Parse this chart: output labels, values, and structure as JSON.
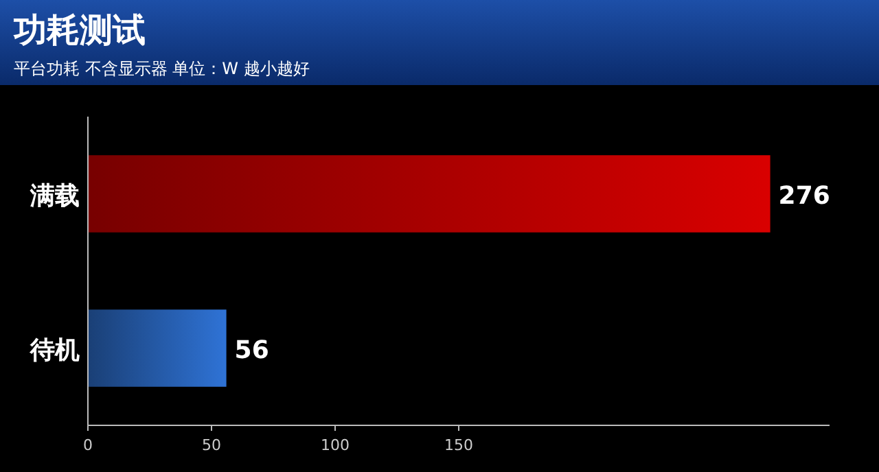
{
  "chart_data": {
    "type": "bar",
    "orientation": "horizontal",
    "title": "功耗测试",
    "subtitle": "平台功耗 不含显示器 单位：W  越小越好",
    "categories": [
      "满载",
      "待机"
    ],
    "values": [
      276,
      56
    ],
    "colors": [
      "#d90000",
      "#2f73d6"
    ],
    "xlim": [
      0,
      300
    ],
    "xticks": [
      0,
      50,
      100,
      150
    ],
    "data_labels": true,
    "grid": false
  }
}
